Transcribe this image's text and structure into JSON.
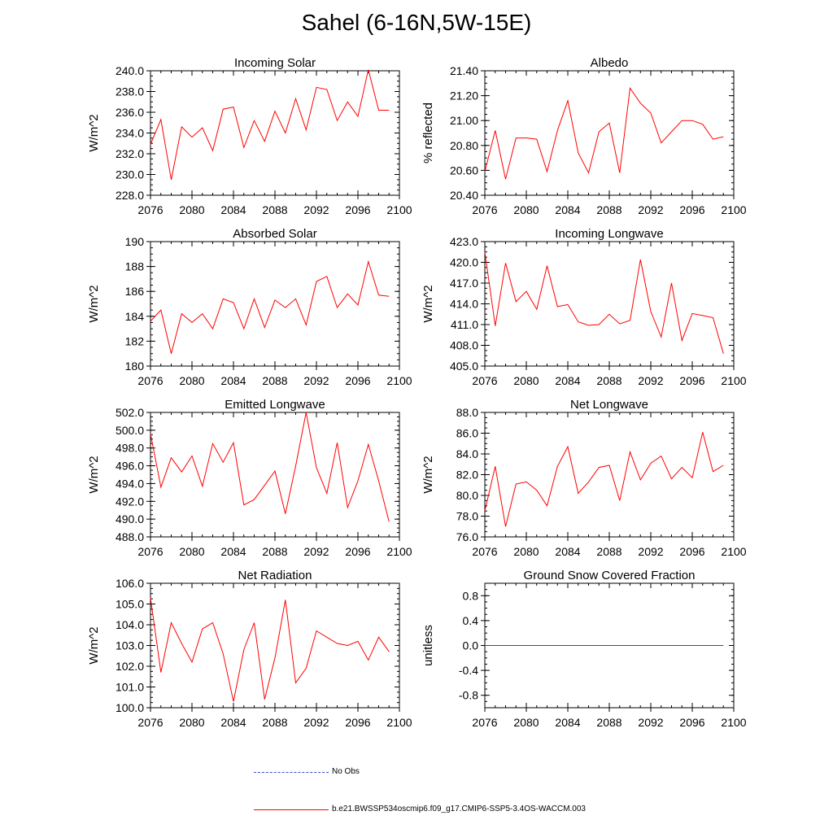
{
  "title": "Sahel (6-16N,5W-15E)",
  "colors": {
    "series": "#ff0000",
    "obs": "#3b4cc0",
    "axis": "#000000"
  },
  "legend": {
    "obs_label": "No Obs",
    "model_label": "b.e21.BWSSP534oscmip6.f09_g17.CMIP6-SSP5-3.4OS-WACCM.003"
  },
  "chart_data": [
    {
      "type": "line",
      "title": "Incoming Solar",
      "ylabel": "W/m^2",
      "xlim": [
        2076,
        2100
      ],
      "ylim": [
        228,
        240
      ],
      "xticks": [
        2076,
        2080,
        2084,
        2088,
        2092,
        2096,
        2100
      ],
      "yticks": [
        "228.0",
        "230.0",
        "232.0",
        "234.0",
        "236.0",
        "238.0",
        "240.0"
      ],
      "x": [
        2076,
        2077,
        2078,
        2079,
        2080,
        2081,
        2082,
        2083,
        2084,
        2085,
        2086,
        2087,
        2088,
        2089,
        2090,
        2091,
        2092,
        2093,
        2094,
        2095,
        2096,
        2097,
        2098,
        2099
      ],
      "values": [
        232.9,
        235.3,
        229.5,
        234.6,
        233.6,
        234.5,
        232.3,
        236.3,
        236.5,
        232.6,
        235.2,
        233.2,
        236.1,
        234.0,
        237.3,
        234.3,
        238.4,
        238.2,
        235.2,
        237.0,
        235.6,
        240.1,
        236.2,
        236.2
      ]
    },
    {
      "type": "line",
      "title": "Albedo",
      "ylabel": "% reflected",
      "xlim": [
        2076,
        2100
      ],
      "ylim": [
        20.4,
        21.4
      ],
      "xticks": [
        2076,
        2080,
        2084,
        2088,
        2092,
        2096,
        2100
      ],
      "yticks": [
        "20.40",
        "20.60",
        "20.80",
        "21.00",
        "21.20",
        "21.40"
      ],
      "x": [
        2076,
        2077,
        2078,
        2079,
        2080,
        2081,
        2082,
        2083,
        2084,
        2085,
        2086,
        2087,
        2088,
        2089,
        2090,
        2091,
        2092,
        2093,
        2094,
        2095,
        2096,
        2097,
        2098,
        2099
      ],
      "values": [
        20.59,
        20.92,
        20.53,
        20.86,
        20.86,
        20.85,
        20.59,
        20.92,
        21.16,
        20.74,
        20.58,
        20.91,
        20.98,
        20.58,
        21.26,
        21.14,
        21.06,
        20.82,
        20.91,
        21.0,
        21.0,
        20.97,
        20.85,
        20.87
      ]
    },
    {
      "type": "line",
      "title": "Absorbed Solar",
      "ylabel": "W/m^2",
      "xlim": [
        2076,
        2100
      ],
      "ylim": [
        180,
        190
      ],
      "xticks": [
        2076,
        2080,
        2084,
        2088,
        2092,
        2096,
        2100
      ],
      "yticks": [
        "180",
        "182",
        "184",
        "186",
        "188",
        "190"
      ],
      "x": [
        2076,
        2077,
        2078,
        2079,
        2080,
        2081,
        2082,
        2083,
        2084,
        2085,
        2086,
        2087,
        2088,
        2089,
        2090,
        2091,
        2092,
        2093,
        2094,
        2095,
        2096,
        2097,
        2098,
        2099
      ],
      "values": [
        183.6,
        184.5,
        181.0,
        184.2,
        183.5,
        184.2,
        183.0,
        185.4,
        185.1,
        183.0,
        185.4,
        183.1,
        185.3,
        184.7,
        185.4,
        183.3,
        186.8,
        187.2,
        184.7,
        185.8,
        184.9,
        188.4,
        185.7,
        185.6
      ]
    },
    {
      "type": "line",
      "title": "Incoming Longwave",
      "ylabel": "W/m^2",
      "xlim": [
        2076,
        2100
      ],
      "ylim": [
        405,
        423
      ],
      "xticks": [
        2076,
        2080,
        2084,
        2088,
        2092,
        2096,
        2100
      ],
      "yticks": [
        "405.0",
        "408.0",
        "411.0",
        "414.0",
        "417.0",
        "420.0",
        "423.0"
      ],
      "x": [
        2076,
        2077,
        2078,
        2079,
        2080,
        2081,
        2082,
        2083,
        2084,
        2085,
        2086,
        2087,
        2088,
        2089,
        2090,
        2091,
        2092,
        2093,
        2094,
        2095,
        2096,
        2097,
        2098,
        2099
      ],
      "values": [
        421.5,
        410.8,
        419.9,
        414.3,
        415.8,
        413.2,
        419.5,
        413.6,
        413.9,
        411.4,
        410.9,
        411.0,
        412.5,
        411.1,
        411.6,
        420.4,
        412.9,
        409.2,
        417.0,
        408.7,
        412.6,
        412.3,
        412.0,
        406.8
      ]
    },
    {
      "type": "line",
      "title": "Emitted Longwave",
      "ylabel": "W/m^2",
      "xlim": [
        2076,
        2100
      ],
      "ylim": [
        488,
        502
      ],
      "xticks": [
        2076,
        2080,
        2084,
        2088,
        2092,
        2096,
        2100
      ],
      "yticks": [
        "488.0",
        "490.0",
        "492.0",
        "494.0",
        "496.0",
        "498.0",
        "500.0",
        "502.0"
      ],
      "x": [
        2076,
        2077,
        2078,
        2079,
        2080,
        2081,
        2082,
        2083,
        2084,
        2085,
        2086,
        2087,
        2088,
        2089,
        2090,
        2091,
        2092,
        2093,
        2094,
        2095,
        2096,
        2097,
        2098,
        2099
      ],
      "values": [
        499.6,
        493.6,
        496.9,
        495.3,
        497.1,
        493.7,
        498.5,
        496.4,
        498.6,
        491.6,
        492.2,
        493.8,
        495.4,
        490.6,
        496.0,
        502.0,
        495.8,
        492.9,
        498.6,
        491.3,
        494.3,
        498.4,
        494.3,
        489.7
      ]
    },
    {
      "type": "line",
      "title": "Net Longwave",
      "ylabel": "W/m^2",
      "xlim": [
        2076,
        2100
      ],
      "ylim": [
        76,
        88
      ],
      "xticks": [
        2076,
        2080,
        2084,
        2088,
        2092,
        2096,
        2100
      ],
      "yticks": [
        "76.0",
        "78.0",
        "80.0",
        "82.0",
        "84.0",
        "86.0",
        "88.0"
      ],
      "x": [
        2076,
        2077,
        2078,
        2079,
        2080,
        2081,
        2082,
        2083,
        2084,
        2085,
        2086,
        2087,
        2088,
        2089,
        2090,
        2091,
        2092,
        2093,
        2094,
        2095,
        2096,
        2097,
        2098,
        2099
      ],
      "values": [
        78.5,
        82.8,
        77.0,
        81.1,
        81.3,
        80.5,
        79.0,
        82.8,
        84.7,
        80.2,
        81.3,
        82.7,
        82.9,
        79.5,
        84.2,
        81.5,
        83.1,
        83.8,
        81.6,
        82.7,
        81.7,
        86.1,
        82.3,
        82.9
      ]
    },
    {
      "type": "line",
      "title": "Net Radiation",
      "ylabel": "W/m^2",
      "xlim": [
        2076,
        2100
      ],
      "ylim": [
        100,
        106
      ],
      "xticks": [
        2076,
        2080,
        2084,
        2088,
        2092,
        2096,
        2100
      ],
      "yticks": [
        "100.0",
        "101.0",
        "102.0",
        "103.0",
        "104.0",
        "105.0",
        "106.0"
      ],
      "x": [
        2076,
        2077,
        2078,
        2079,
        2080,
        2081,
        2082,
        2083,
        2084,
        2085,
        2086,
        2087,
        2088,
        2089,
        2090,
        2091,
        2092,
        2093,
        2094,
        2095,
        2096,
        2097,
        2098,
        2099
      ],
      "values": [
        105.3,
        101.7,
        104.1,
        103.1,
        102.2,
        103.8,
        104.1,
        102.6,
        100.3,
        102.8,
        104.1,
        100.4,
        102.4,
        105.2,
        101.2,
        101.9,
        103.7,
        103.4,
        103.1,
        103.0,
        103.2,
        102.3,
        103.4,
        102.7
      ]
    },
    {
      "type": "line",
      "title": "Ground Snow Covered Fraction",
      "ylabel": "unitless",
      "xlim": [
        2076,
        2100
      ],
      "ylim": [
        -1.0,
        1.0
      ],
      "xticks": [
        2076,
        2080,
        2084,
        2088,
        2092,
        2096,
        2100
      ],
      "yticks": [
        "-0.8",
        "-0.4",
        "0.0",
        "0.4",
        "0.8"
      ],
      "x": [
        2076,
        2077,
        2078,
        2079,
        2080,
        2081,
        2082,
        2083,
        2084,
        2085,
        2086,
        2087,
        2088,
        2089,
        2090,
        2091,
        2092,
        2093,
        2094,
        2095,
        2096,
        2097,
        2098,
        2099
      ],
      "values": [
        0,
        0,
        0,
        0,
        0,
        0,
        0,
        0,
        0,
        0,
        0,
        0,
        0,
        0,
        0,
        0,
        0,
        0,
        0,
        0,
        0,
        0,
        0,
        0
      ]
    }
  ]
}
